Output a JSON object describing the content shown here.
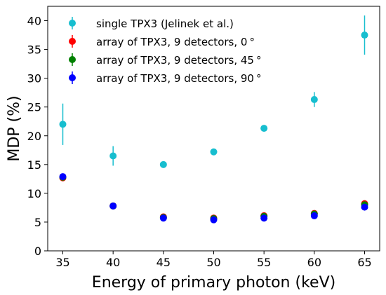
{
  "chart_data": {
    "type": "scatter",
    "title": "",
    "xlabel": "Energy of primary photon (keV)",
    "ylabel": "MDP (%)",
    "xlim": [
      33.5,
      66.5
    ],
    "ylim": [
      0,
      42.5
    ],
    "xticks": [
      35,
      40,
      45,
      50,
      55,
      60,
      65
    ],
    "yticks": [
      0,
      5,
      10,
      15,
      20,
      25,
      30,
      35,
      40
    ],
    "grid": false,
    "legend_position": "top-left",
    "series": [
      {
        "name": "single TPX3 (Jelinek et al.)",
        "color": "#17becf",
        "points": [
          {
            "x": 35,
            "y": 22.0,
            "yerr": 3.6
          },
          {
            "x": 40,
            "y": 16.5,
            "yerr": 1.7
          },
          {
            "x": 45,
            "y": 15.0,
            "yerr": 0.4
          },
          {
            "x": 50,
            "y": 17.2,
            "yerr": 0.3
          },
          {
            "x": 55,
            "y": 21.3,
            "yerr": 0.3
          },
          {
            "x": 60,
            "y": 26.3,
            "yerr": 1.3
          },
          {
            "x": 65,
            "y": 37.5,
            "yerr": 3.4
          }
        ]
      },
      {
        "name": "array of TPX3, 9 detectors, 0$^\\circ$",
        "label_text": "array of TPX3, 9 detectors, 0",
        "color": "#ff0000",
        "points": [
          {
            "x": 35,
            "y": 12.7,
            "yerr": 0.3
          },
          {
            "x": 40,
            "y": 7.8,
            "yerr": 0.2
          },
          {
            "x": 45,
            "y": 5.9,
            "yerr": 0.1
          },
          {
            "x": 50,
            "y": 5.7,
            "yerr": 0.1
          },
          {
            "x": 55,
            "y": 6.1,
            "yerr": 0.1
          },
          {
            "x": 60,
            "y": 6.5,
            "yerr": 0.1
          },
          {
            "x": 65,
            "y": 8.2,
            "yerr": 0.2
          }
        ]
      },
      {
        "name": "array of TPX3, 9 detectors, 45$^\\circ$",
        "label_text": "array of TPX3, 9 detectors, 45",
        "color": "#008000",
        "points": [
          {
            "x": 35,
            "y": 12.8,
            "yerr": 0.3
          },
          {
            "x": 40,
            "y": 7.8,
            "yerr": 0.2
          },
          {
            "x": 45,
            "y": 5.8,
            "yerr": 0.1
          },
          {
            "x": 50,
            "y": 5.6,
            "yerr": 0.1
          },
          {
            "x": 55,
            "y": 6.0,
            "yerr": 0.1
          },
          {
            "x": 60,
            "y": 6.4,
            "yerr": 0.1
          },
          {
            "x": 65,
            "y": 8.0,
            "yerr": 0.2
          }
        ]
      },
      {
        "name": "array of TPX3, 9 detectors, 90$^\\circ$",
        "label_text": "array of TPX3, 9 detectors, 90",
        "color": "#0000ff",
        "points": [
          {
            "x": 35,
            "y": 12.9,
            "yerr": 0.3
          },
          {
            "x": 40,
            "y": 7.8,
            "yerr": 0.2
          },
          {
            "x": 45,
            "y": 5.7,
            "yerr": 0.1
          },
          {
            "x": 50,
            "y": 5.4,
            "yerr": 0.1
          },
          {
            "x": 55,
            "y": 5.7,
            "yerr": 0.1
          },
          {
            "x": 60,
            "y": 6.1,
            "yerr": 0.1
          },
          {
            "x": 65,
            "y": 7.6,
            "yerr": 0.2
          }
        ]
      }
    ],
    "degree_symbol": "°"
  }
}
